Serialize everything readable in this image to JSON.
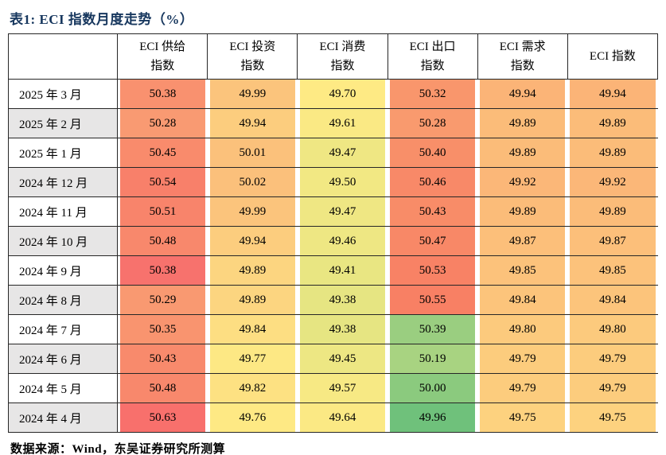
{
  "title": "表1:  ECI 指数月度走势（%）",
  "source_note": "数据来源：Wind，东吴证券研究所测算",
  "colors": {
    "title_navy": "#17375E",
    "grid_line": "#262626",
    "stripe_gray": "#E7E6E6",
    "heatmap_red": "#F8696B",
    "heatmap_yellow": "#FFEB84",
    "heatmap_green": "#63BE7B"
  },
  "table": {
    "corner_label": "",
    "headers": [
      {
        "line1": "ECI 供给",
        "line2": "指数"
      },
      {
        "line1": "ECI 投资",
        "line2": "指数"
      },
      {
        "line1": "ECI 消费",
        "line2": "指数"
      },
      {
        "line1": "ECI 出口",
        "line2": "指数"
      },
      {
        "line1": "ECI 需求",
        "line2": "指数"
      },
      {
        "line1": "ECI 指数",
        "line2": ""
      }
    ],
    "rows": [
      {
        "month": "2025 年 3 月",
        "cells": [
          {
            "value": "50.38",
            "bg": "#F9916F"
          },
          {
            "value": "49.99",
            "bg": "#FBC47C"
          },
          {
            "value": "49.70",
            "bg": "#FEEA84"
          },
          {
            "value": "50.32",
            "bg": "#F9966C"
          },
          {
            "value": "49.94",
            "bg": "#FBB477"
          },
          {
            "value": "49.94",
            "bg": "#FBB477"
          }
        ]
      },
      {
        "month": "2025 年 2 月",
        "cells": [
          {
            "value": "50.28",
            "bg": "#F99A72"
          },
          {
            "value": "49.94",
            "bg": "#FCCD7E"
          },
          {
            "value": "49.61",
            "bg": "#FAE984"
          },
          {
            "value": "50.28",
            "bg": "#F99A6E"
          },
          {
            "value": "49.89",
            "bg": "#FBBC79"
          },
          {
            "value": "49.89",
            "bg": "#FBBC79"
          }
        ]
      },
      {
        "month": "2025 年 1 月",
        "cells": [
          {
            "value": "50.45",
            "bg": "#F98B6C"
          },
          {
            "value": "50.01",
            "bg": "#FBC17B"
          },
          {
            "value": "49.47",
            "bg": "#EFE783"
          },
          {
            "value": "50.40",
            "bg": "#F88F69"
          },
          {
            "value": "49.89",
            "bg": "#FBBC79"
          },
          {
            "value": "49.89",
            "bg": "#FBBC79"
          }
        ]
      },
      {
        "month": "2024 年 12 月",
        "cells": [
          {
            "value": "50.54",
            "bg": "#F8806A"
          },
          {
            "value": "50.02",
            "bg": "#FBC07B"
          },
          {
            "value": "49.50",
            "bg": "#F2E883"
          },
          {
            "value": "50.46",
            "bg": "#F88968"
          },
          {
            "value": "49.92",
            "bg": "#FBB778"
          },
          {
            "value": "49.92",
            "bg": "#FBB778"
          }
        ]
      },
      {
        "month": "2024 年 11 月",
        "cells": [
          {
            "value": "50.51",
            "bg": "#F8846B"
          },
          {
            "value": "49.99",
            "bg": "#FBC47C"
          },
          {
            "value": "49.47",
            "bg": "#EFE783"
          },
          {
            "value": "50.43",
            "bg": "#F88C68"
          },
          {
            "value": "49.89",
            "bg": "#FBBC79"
          },
          {
            "value": "49.89",
            "bg": "#FBBC79"
          }
        ]
      },
      {
        "month": "2024 年 10 月",
        "cells": [
          {
            "value": "50.48",
            "bg": "#F8886C"
          },
          {
            "value": "49.94",
            "bg": "#FCCD7E"
          },
          {
            "value": "49.46",
            "bg": "#EEE783"
          },
          {
            "value": "50.47",
            "bg": "#F88867"
          },
          {
            "value": "49.87",
            "bg": "#FCBF7A"
          },
          {
            "value": "49.87",
            "bg": "#FCBF7A"
          }
        ]
      },
      {
        "month": "2024 年 9 月",
        "cells": [
          {
            "value": "50.38",
            "bg": "#F7726D"
          },
          {
            "value": "49.89",
            "bg": "#FCD580"
          },
          {
            "value": "49.41",
            "bg": "#E9E682"
          },
          {
            "value": "50.53",
            "bg": "#F88265"
          },
          {
            "value": "49.85",
            "bg": "#FCC27B"
          },
          {
            "value": "49.85",
            "bg": "#FCC27B"
          }
        ]
      },
      {
        "month": "2024 年 8 月",
        "cells": [
          {
            "value": "50.29",
            "bg": "#F99971"
          },
          {
            "value": "49.89",
            "bg": "#FCD580"
          },
          {
            "value": "49.38",
            "bg": "#E6E582"
          },
          {
            "value": "50.55",
            "bg": "#F88064"
          },
          {
            "value": "49.84",
            "bg": "#FCC47B"
          },
          {
            "value": "49.84",
            "bg": "#FCC47B"
          }
        ]
      },
      {
        "month": "2024 年 7 月",
        "cells": [
          {
            "value": "50.35",
            "bg": "#F9946F"
          },
          {
            "value": "49.84",
            "bg": "#FDDE82"
          },
          {
            "value": "49.38",
            "bg": "#E6E582"
          },
          {
            "value": "50.39",
            "bg": "#9ACE80"
          },
          {
            "value": "49.80",
            "bg": "#FCCA7D"
          },
          {
            "value": "49.80",
            "bg": "#FCCA7D"
          }
        ]
      },
      {
        "month": "2024 年 6 月",
        "cells": [
          {
            "value": "50.43",
            "bg": "#F88A6C"
          },
          {
            "value": "49.77",
            "bg": "#FDE884"
          },
          {
            "value": "49.45",
            "bg": "#EDE783"
          },
          {
            "value": "50.19",
            "bg": "#A8D381"
          },
          {
            "value": "49.79",
            "bg": "#FCCC7D"
          },
          {
            "value": "49.79",
            "bg": "#FCCC7D"
          }
        ]
      },
      {
        "month": "2024 年 5 月",
        "cells": [
          {
            "value": "50.48",
            "bg": "#F8886C"
          },
          {
            "value": "49.82",
            "bg": "#FDE182"
          },
          {
            "value": "49.57",
            "bg": "#F7E984"
          },
          {
            "value": "50.00",
            "bg": "#8BCA7E"
          },
          {
            "value": "49.79",
            "bg": "#FCCC7D"
          },
          {
            "value": "49.79",
            "bg": "#FCCC7D"
          }
        ]
      },
      {
        "month": "2024 年 4 月",
        "cells": [
          {
            "value": "50.63",
            "bg": "#F8706C"
          },
          {
            "value": "49.76",
            "bg": "#FEE984"
          },
          {
            "value": "49.64",
            "bg": "#FBE984"
          },
          {
            "value": "49.96",
            "bg": "#6FC17B"
          },
          {
            "value": "49.75",
            "bg": "#FDD27F"
          },
          {
            "value": "49.75",
            "bg": "#FDD27F"
          }
        ]
      }
    ]
  }
}
